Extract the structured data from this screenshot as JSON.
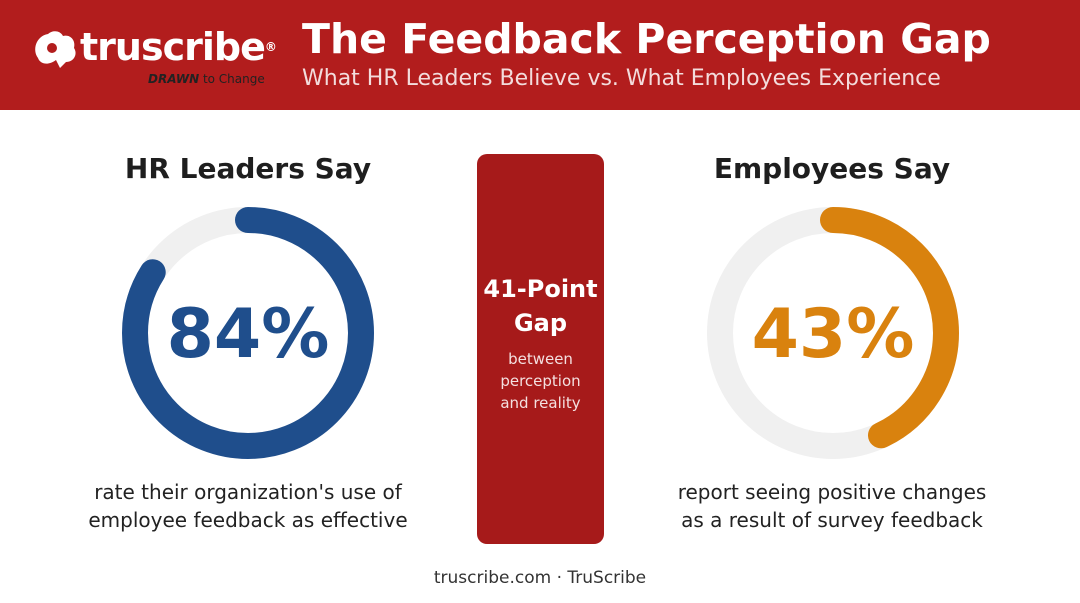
{
  "header": {
    "logo_text": "truscribe",
    "logo_registered": "®",
    "logo_tag_bold": "DRAWN",
    "logo_tag_rest": " to Change",
    "title": "The Feedback Perception Gap",
    "subtitle": "What HR Leaders Believe vs. What Employees Experience"
  },
  "chart_data": [
    {
      "type": "pie",
      "title": "HR Leaders Say",
      "value": 84,
      "value_label": "84%",
      "max": 100,
      "caption_lines": [
        "rate their organization's use of",
        "employee feedback as effective"
      ],
      "color": "#1f4e8c",
      "track_color": "#f0f0f0"
    },
    {
      "type": "pie",
      "title": "Employees Say",
      "value": 43,
      "value_label": "43%",
      "max": 100,
      "caption_lines": [
        "report seeing positive changes",
        "as a result of survey feedback"
      ],
      "color": "#d9820e",
      "track_color": "#f0f0f0"
    }
  ],
  "gap": {
    "label_lines": [
      "41-Point",
      "Gap"
    ],
    "note_lines": [
      "between",
      "perception",
      "and reality"
    ]
  },
  "footer": {
    "text": "truscribe.com · TruScribe"
  },
  "colors": {
    "header_bg": "#b21d1d",
    "gap_bg": "#a61a1a"
  }
}
